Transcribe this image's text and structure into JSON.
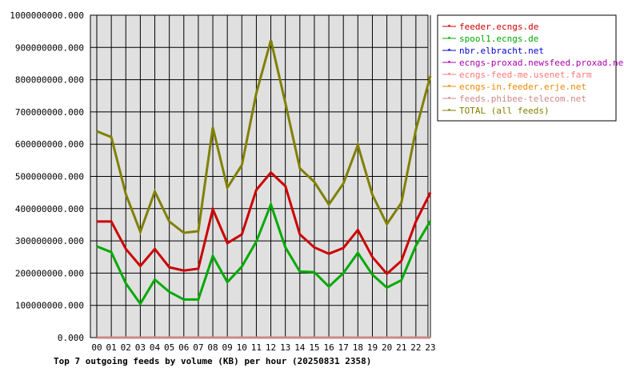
{
  "chart_data": {
    "type": "line",
    "title": "Top 7 outgoing feeds by volume (KB) per hour (20250831 2358)",
    "categories": [
      "00",
      "01",
      "02",
      "03",
      "04",
      "05",
      "06",
      "07",
      "08",
      "09",
      "10",
      "11",
      "12",
      "13",
      "14",
      "15",
      "16",
      "17",
      "18",
      "19",
      "20",
      "21",
      "22",
      "23"
    ],
    "ylim": [
      0,
      1000000000
    ],
    "yticks": [
      "0.000",
      "100000000.000",
      "200000000.000",
      "300000000.000",
      "400000000.000",
      "500000000.000",
      "600000000.000",
      "700000000.000",
      "800000000.000",
      "900000000.000",
      "1000000000.000"
    ],
    "grid": true,
    "legend_position": "right",
    "series": [
      {
        "name": "feeder.ecngs.de",
        "color": "#cc0000",
        "values": [
          360000000,
          360000000,
          275000000,
          222000000,
          275000000,
          218000000,
          208000000,
          214000000,
          398000000,
          293000000,
          320000000,
          458000000,
          512000000,
          470000000,
          320000000,
          280000000,
          260000000,
          278000000,
          334000000,
          250000000,
          198000000,
          238000000,
          360000000,
          450000000
        ]
      },
      {
        "name": "spool1.ecngs.de",
        "color": "#00aa00",
        "values": [
          283000000,
          265000000,
          168000000,
          105000000,
          180000000,
          142000000,
          118000000,
          118000000,
          253000000,
          172000000,
          220000000,
          298000000,
          413000000,
          280000000,
          205000000,
          203000000,
          158000000,
          200000000,
          263000000,
          195000000,
          155000000,
          178000000,
          285000000,
          362000000
        ]
      },
      {
        "name": "nbr.elbracht.net",
        "color": "#0000cc",
        "values": [
          0,
          0,
          0,
          0,
          0,
          0,
          0,
          0,
          0,
          0,
          0,
          0,
          0,
          0,
          0,
          0,
          0,
          0,
          0,
          0,
          0,
          0,
          0,
          0
        ]
      },
      {
        "name": "ecngs-proxad.newsfeed.proxad.net",
        "color": "#aa00aa",
        "values": [
          0,
          0,
          0,
          0,
          0,
          0,
          0,
          0,
          0,
          0,
          0,
          0,
          0,
          0,
          0,
          0,
          0,
          0,
          0,
          0,
          0,
          0,
          0,
          0
        ]
      },
      {
        "name": "ecngs-feed-me.usenet.farm",
        "color": "#ff7777",
        "values": [
          0,
          0,
          0,
          0,
          0,
          0,
          0,
          0,
          0,
          0,
          0,
          0,
          0,
          0,
          0,
          0,
          0,
          0,
          0,
          0,
          0,
          0,
          0,
          0
        ]
      },
      {
        "name": "ecngs-in.feeder.erje.net",
        "color": "#ee8800",
        "values": [
          0,
          0,
          0,
          0,
          0,
          0,
          0,
          0,
          0,
          0,
          0,
          0,
          0,
          0,
          0,
          0,
          0,
          0,
          0,
          0,
          0,
          0,
          0,
          0
        ]
      },
      {
        "name": "feeds.phibee-telecom.net",
        "color": "#cc8888",
        "values": [
          0,
          0,
          0,
          0,
          0,
          0,
          0,
          0,
          0,
          0,
          0,
          0,
          0,
          0,
          0,
          0,
          0,
          0,
          0,
          0,
          0,
          0,
          0,
          0
        ]
      },
      {
        "name": "TOTAL (all feeds)",
        "color": "#808000",
        "values": [
          640000000,
          622000000,
          445000000,
          328000000,
          453000000,
          360000000,
          325000000,
          330000000,
          652000000,
          465000000,
          535000000,
          758000000,
          922000000,
          728000000,
          525000000,
          483000000,
          413000000,
          478000000,
          597000000,
          443000000,
          352000000,
          418000000,
          645000000,
          812000000
        ]
      }
    ]
  }
}
